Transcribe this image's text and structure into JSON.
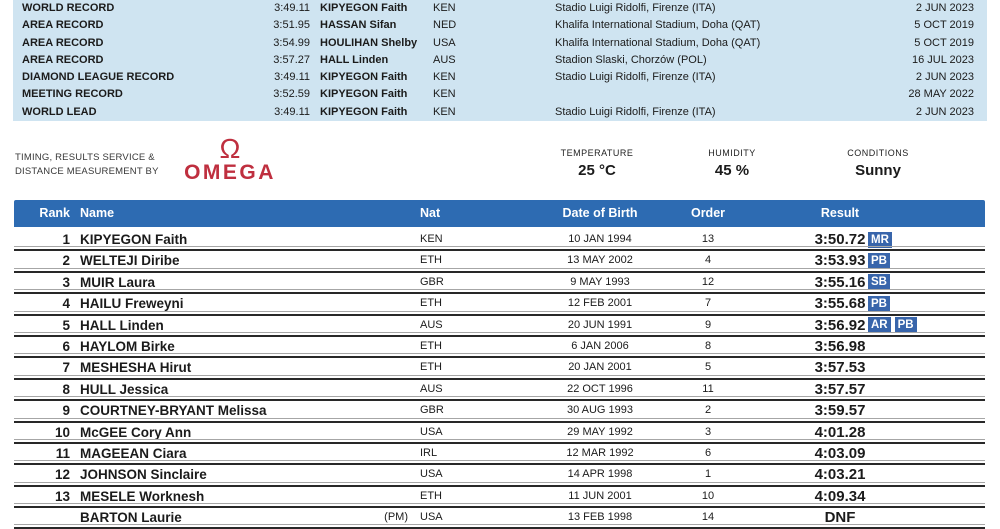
{
  "colors": {
    "panel_blue": "#cfe4f1",
    "header_blue": "#2d6bb2",
    "badge_blue": "#3865ab",
    "omega_red": "#bf2f3f"
  },
  "records": {
    "rows": [
      {
        "label": "WORLD RECORD",
        "time": "3:49.11",
        "athlete": "KIPYEGON Faith",
        "nat": "KEN",
        "venue": "Stadio Luigi Ridolfi, Firenze (ITA)",
        "date": "2 JUN 2023"
      },
      {
        "label": "AREA RECORD",
        "time": "3:51.95",
        "athlete": "HASSAN Sifan",
        "nat": "NED",
        "venue": "Khalifa International Stadium, Doha (QAT)",
        "date": "5 OCT 2019"
      },
      {
        "label": "AREA RECORD",
        "time": "3:54.99",
        "athlete": "HOULIHAN Shelby",
        "nat": "USA",
        "venue": "Khalifa International Stadium, Doha (QAT)",
        "date": "5 OCT 2019"
      },
      {
        "label": "AREA RECORD",
        "time": "3:57.27",
        "athlete": "HALL Linden",
        "nat": "AUS",
        "venue": "Stadion Slaski, Chorzów (POL)",
        "date": "16 JUL 2023"
      },
      {
        "label": "DIAMOND LEAGUE RECORD",
        "time": "3:49.11",
        "athlete": "KIPYEGON Faith",
        "nat": "KEN",
        "venue": "Stadio Luigi Ridolfi, Firenze (ITA)",
        "date": "2 JUN 2023"
      },
      {
        "label": "MEETING RECORD",
        "time": "3:52.59",
        "athlete": "KIPYEGON Faith",
        "nat": "KEN",
        "venue": "",
        "date": "28 MAY 2022"
      },
      {
        "label": "WORLD LEAD",
        "time": "3:49.11",
        "athlete": "KIPYEGON Faith",
        "nat": "KEN",
        "venue": "Stadio Luigi Ridolfi, Firenze (ITA)",
        "date": "2 JUN 2023"
      }
    ]
  },
  "timing": {
    "provider_line1": "TIMING, RESULTS SERVICE &",
    "provider_line2": "DISTANCE MEASUREMENT BY",
    "omega_symbol": "Ω",
    "omega_name": "OMEGA"
  },
  "weather": {
    "temperature_label": "TEMPERATURE",
    "temperature_value": "25 °C",
    "humidity_label": "HUMIDITY",
    "humidity_value": "45 %",
    "conditions_label": "CONDITIONS",
    "conditions_value": "Sunny"
  },
  "results_table": {
    "headers": {
      "rank": "Rank",
      "name": "Name",
      "nat": "Nat",
      "dob": "Date of Birth",
      "order": "Order",
      "result": "Result"
    },
    "rows": [
      {
        "rank": "1",
        "name": "KIPYEGON Faith",
        "nat_prefix": "",
        "nat": "KEN",
        "dob": "10 JAN 1994",
        "order": "13",
        "result": "3:50.72",
        "badges": [
          "MR"
        ]
      },
      {
        "rank": "2",
        "name": "WELTEJI Diribe",
        "nat_prefix": "",
        "nat": "ETH",
        "dob": "13 MAY 2002",
        "order": "4",
        "result": "3:53.93",
        "badges": [
          "PB"
        ]
      },
      {
        "rank": "3",
        "name": "MUIR Laura",
        "nat_prefix": "",
        "nat": "GBR",
        "dob": "9 MAY 1993",
        "order": "12",
        "result": "3:55.16",
        "badges": [
          "SB"
        ]
      },
      {
        "rank": "4",
        "name": "HAILU Freweyni",
        "nat_prefix": "",
        "nat": "ETH",
        "dob": "12 FEB 2001",
        "order": "7",
        "result": "3:55.68",
        "badges": [
          "PB"
        ]
      },
      {
        "rank": "5",
        "name": "HALL Linden",
        "nat_prefix": "",
        "nat": "AUS",
        "dob": "20 JUN 1991",
        "order": "9",
        "result": "3:56.92",
        "badges": [
          "AR",
          "PB"
        ]
      },
      {
        "rank": "6",
        "name": "HAYLOM Birke",
        "nat_prefix": "",
        "nat": "ETH",
        "dob": "6 JAN 2006",
        "order": "8",
        "result": "3:56.98",
        "badges": []
      },
      {
        "rank": "7",
        "name": "MESHESHA Hirut",
        "nat_prefix": "",
        "nat": "ETH",
        "dob": "20 JAN 2001",
        "order": "5",
        "result": "3:57.53",
        "badges": []
      },
      {
        "rank": "8",
        "name": "HULL Jessica",
        "nat_prefix": "",
        "nat": "AUS",
        "dob": "22 OCT 1996",
        "order": "11",
        "result": "3:57.57",
        "badges": []
      },
      {
        "rank": "9",
        "name": "COURTNEY-BRYANT Melissa",
        "nat_prefix": "",
        "nat": "GBR",
        "dob": "30 AUG 1993",
        "order": "2",
        "result": "3:59.57",
        "badges": []
      },
      {
        "rank": "10",
        "name": "McGEE Cory Ann",
        "nat_prefix": "",
        "nat": "USA",
        "dob": "29 MAY 1992",
        "order": "3",
        "result": "4:01.28",
        "badges": []
      },
      {
        "rank": "11",
        "name": "MAGEEAN Ciara",
        "nat_prefix": "",
        "nat": "IRL",
        "dob": "12 MAR 1992",
        "order": "6",
        "result": "4:03.09",
        "badges": []
      },
      {
        "rank": "12",
        "name": "JOHNSON Sinclaire",
        "nat_prefix": "",
        "nat": "USA",
        "dob": "14 APR 1998",
        "order": "1",
        "result": "4:03.21",
        "badges": []
      },
      {
        "rank": "13",
        "name": "MESELE Worknesh",
        "nat_prefix": "",
        "nat": "ETH",
        "dob": "11 JUN 2001",
        "order": "10",
        "result": "4:09.34",
        "badges": []
      },
      {
        "rank": "",
        "name": "BARTON Laurie",
        "nat_prefix": "(PM)",
        "nat": "USA",
        "dob": "13 FEB 1998",
        "order": "14",
        "result": "DNF",
        "badges": []
      }
    ]
  }
}
